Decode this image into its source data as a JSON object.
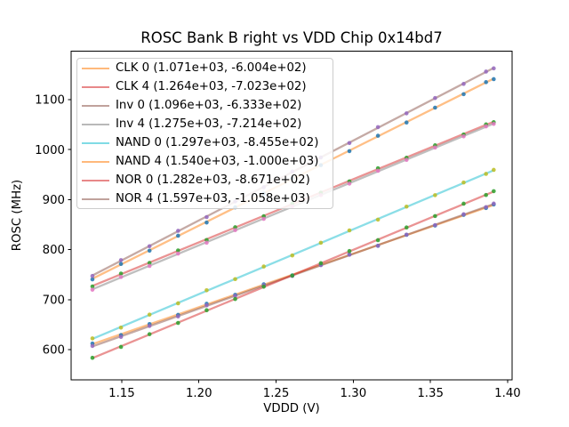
{
  "figure": {
    "title": "ROSC Bank B right vs VDD Chip 0x14bd7",
    "xlabel": "VDDD (V)",
    "ylabel": "ROSC (MHz)"
  },
  "chart_data": {
    "type": "scatter",
    "title": "ROSC Bank B right vs VDD Chip 0x14bd7",
    "xlabel": "VDDD (V)",
    "ylabel": "ROSC (MHz)",
    "xlim": [
      1.1172,
      1.4029
    ],
    "ylim": [
      539.1,
      1196.8
    ],
    "xticks": {
      "values": [
        1.15,
        1.2,
        1.25,
        1.3,
        1.35,
        1.4
      ],
      "labels": [
        "1.15",
        "1.20",
        "1.25",
        "1.30",
        "1.35",
        "1.40"
      ]
    },
    "yticks": {
      "values": [
        600,
        700,
        800,
        900,
        1000,
        1100
      ],
      "labels": [
        "600",
        "700",
        "800",
        "900",
        "1000",
        "1100"
      ]
    },
    "grid": false,
    "legend_position": "upper left",
    "legend_border_color": "#cccccc",
    "fit_line_x_range": [
      1.131,
      1.391
    ],
    "x": [
      1.131,
      1.1495,
      1.168,
      1.1865,
      1.205,
      1.2235,
      1.242,
      1.2605,
      1.279,
      1.2975,
      1.316,
      1.3345,
      1.353,
      1.3715,
      1.386,
      1.391
    ],
    "series": [
      {
        "name": "CLK 0",
        "legend_label": "CLK 0 (1.071e+03, -6.004e+02)",
        "fit_slope": 1071.0,
        "fit_intercept": -600.4,
        "line_color": "#ff7f0e",
        "point_color": "#1f77b4",
        "y": [
          612.1,
          628.9,
          651.1,
          669.4,
          691.7,
          709.6,
          730.6,
          748.4,
          769.7,
          790.3,
          807.6,
          829.6,
          848.1,
          869.5,
          883.2,
          890.3
        ]
      },
      {
        "name": "CLK 4",
        "legend_label": "CLK 4 (1.264e+03, -7.023e+02)",
        "fit_slope": 1264.0,
        "fit_intercept": -702.3,
        "line_color": "#d62728",
        "point_color": "#2ca02c",
        "y": [
          726.2,
          752.1,
          773.4,
          798.3,
          819.2,
          844.7,
          866.7,
          892.3,
          914.0,
          936.5,
          962.7,
          983.7,
          1008.6,
          1030.2,
          1050.5,
          1054.9
        ]
      },
      {
        "name": "Inv 0",
        "legend_label": "Inv 0 (1.096e+03, -6.333e+02)",
        "fit_slope": 1096.0,
        "fit_intercept": -633.3,
        "line_color": "#8c564b",
        "point_color": "#9467bd",
        "y": [
          607.2,
          625.4,
          647.3,
          666.3,
          688.6,
          707.4,
          728.6,
          747.2,
          768.9,
          789.7,
          807.7,
          829.9,
          849.1,
          870.7,
          885.1,
          892.1
        ]
      },
      {
        "name": "Inv 4",
        "legend_label": "Inv 4 (1.275e+03, -7.214e+02)",
        "fit_slope": 1275.0,
        "fit_intercept": -721.4,
        "line_color": "#7f7f7f",
        "point_color": "#e377c2",
        "y": [
          719.8,
          745.3,
          767.3,
          792.1,
          813.8,
          839.0,
          861.5,
          886.7,
          909.0,
          932.0,
          957.7,
          979.5,
          1004.2,
          1026.5,
          1046.5,
          1051.4
        ]
      },
      {
        "name": "NAND 0",
        "legend_label": "NAND 0 (1.297e+03, -8.455e+02)",
        "fit_slope": 1297.0,
        "fit_intercept": -845.5,
        "line_color": "#17becf",
        "point_color": "#bcbd22",
        "y": [
          622.4,
          644.0,
          670.0,
          692.6,
          718.7,
          741.0,
          766.2,
          788.3,
          813.7,
          838.4,
          860.0,
          886.0,
          908.9,
          934.3,
          951.5,
          959.5
        ]
      },
      {
        "name": "NAND 4",
        "legend_label": "NAND 4 (1.540e+03, -1.000e+03)",
        "fit_slope": 1540.0,
        "fit_intercept": -1000.0,
        "line_color": "#ff7f0e",
        "point_color": "#1f77b4",
        "y": [
          740.5,
          771.3,
          797.9,
          827.8,
          854.1,
          884.5,
          911.7,
          942.2,
          969.0,
          996.9,
          1027.8,
          1054.2,
          1084.0,
          1110.9,
          1135.0,
          1141.0
        ]
      },
      {
        "name": "NOR 0",
        "legend_label": "NOR 0 (1.282e+03, -8.671e+02)",
        "fit_slope": 1282.0,
        "fit_intercept": -867.1,
        "line_color": "#d62728",
        "point_color": "#2ca02c",
        "y": [
          583.6,
          605.4,
          630.8,
          653.3,
          678.8,
          701.1,
          725.8,
          748.0,
          772.9,
          797.1,
          818.9,
          844.3,
          867.1,
          891.9,
          909.2,
          916.9
        ]
      },
      {
        "name": "NOR 4",
        "legend_label": "NOR 4 (1.597e+03, -1.058e+03)",
        "fit_slope": 1597.0,
        "fit_intercept": -1058.0,
        "line_color": "#8c564b",
        "point_color": "#9467bd",
        "y": [
          747.3,
          779.0,
          806.8,
          837.6,
          865.1,
          896.4,
          924.8,
          956.1,
          984.3,
          1013.2,
          1045.0,
          1072.6,
          1103.2,
          1131.4,
          1156.1,
          1162.6
        ]
      }
    ]
  }
}
